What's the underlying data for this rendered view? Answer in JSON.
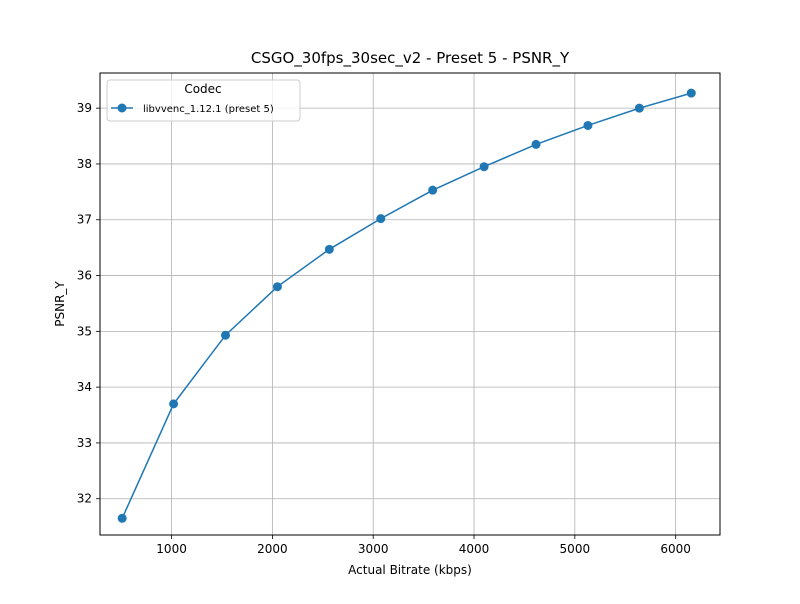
{
  "chart_data": {
    "type": "line",
    "title": "CSGO_30fps_30sec_v2 - Preset 5 - PSNR_Y",
    "xlabel": "Actual Bitrate (kbps)",
    "ylabel": "PSNR_Y",
    "xlim": [
      290,
      6440
    ],
    "ylim": [
      31.35,
      39.63
    ],
    "xticks": [
      1000,
      2000,
      3000,
      4000,
      5000,
      6000
    ],
    "yticks": [
      32,
      33,
      34,
      35,
      36,
      37,
      38,
      39
    ],
    "grid": true,
    "legend": {
      "title": "Codec",
      "placement": "top-left"
    },
    "series": [
      {
        "name": "libvvenc_1.12.1 (preset 5)",
        "color": "#1f77b4",
        "marker": "circle",
        "x": [
          510,
          1020,
          1535,
          2050,
          2565,
          3075,
          3590,
          4100,
          4615,
          5130,
          5640,
          6155
        ],
        "y": [
          31.65,
          33.7,
          34.93,
          35.8,
          36.47,
          37.02,
          37.53,
          37.95,
          38.35,
          38.69,
          39.0,
          39.27
        ]
      }
    ]
  }
}
